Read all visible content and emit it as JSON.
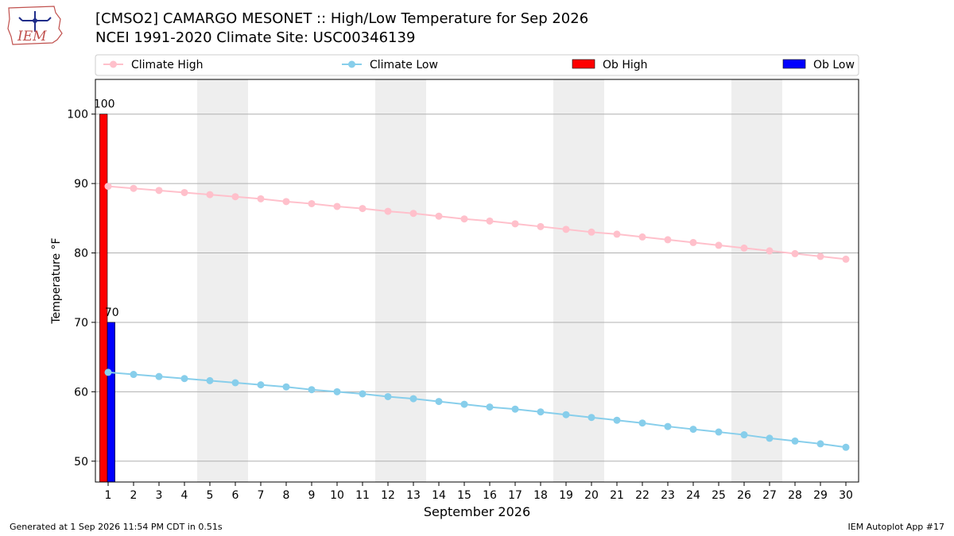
{
  "header": {
    "title_line1": "[CMSO2] CAMARGO MESONET :: High/Low Temperature for Sep 2026",
    "title_line2": "NCEI 1991-2020 Climate Site: USC00346139",
    "logo_text": "IEM"
  },
  "footer": {
    "generated": "Generated at 1 Sep 2026 11:54 PM CDT in 0.51s",
    "app": "IEM Autoplot App #17"
  },
  "colors": {
    "climate_high": "#ffc0cb",
    "climate_low": "#87ceeb",
    "ob_high": "#ff0000",
    "ob_low": "#0000ff",
    "weekend_band": "#eeeeee",
    "grid": "#b0b0b0"
  },
  "chart_data": {
    "type": "bar",
    "xlabel": "September 2026",
    "ylabel": "Temperature °F",
    "xlim": [
      0.5,
      30.5
    ],
    "ylim": [
      47,
      105
    ],
    "x_ticks": [
      1,
      2,
      3,
      4,
      5,
      6,
      7,
      8,
      9,
      10,
      11,
      12,
      13,
      14,
      15,
      16,
      17,
      18,
      19,
      20,
      21,
      22,
      23,
      24,
      25,
      26,
      27,
      28,
      29,
      30
    ],
    "y_ticks": [
      50,
      60,
      70,
      80,
      90,
      100
    ],
    "grid": "horizontal",
    "weekend_bands": [
      [
        4.5,
        6.5
      ],
      [
        11.5,
        13.5
      ],
      [
        18.5,
        20.5
      ],
      [
        25.5,
        27.5
      ]
    ],
    "legend_position": "top",
    "legend": [
      {
        "label": "Climate High",
        "kind": "line",
        "color_key": "climate_high"
      },
      {
        "label": "Climate Low",
        "kind": "line",
        "color_key": "climate_low"
      },
      {
        "label": "Ob High",
        "kind": "box",
        "color_key": "ob_high"
      },
      {
        "label": "Ob Low",
        "kind": "box",
        "color_key": "ob_low"
      }
    ],
    "series": [
      {
        "name": "Climate High",
        "type": "line",
        "x": [
          1,
          2,
          3,
          4,
          5,
          6,
          7,
          8,
          9,
          10,
          11,
          12,
          13,
          14,
          15,
          16,
          17,
          18,
          19,
          20,
          21,
          22,
          23,
          24,
          25,
          26,
          27,
          28,
          29,
          30
        ],
        "values": [
          89.6,
          89.3,
          89.0,
          88.7,
          88.4,
          88.1,
          87.8,
          87.4,
          87.1,
          86.7,
          86.4,
          86.0,
          85.7,
          85.3,
          84.9,
          84.6,
          84.2,
          83.8,
          83.4,
          83.0,
          82.7,
          82.3,
          81.9,
          81.5,
          81.1,
          80.7,
          80.3,
          79.9,
          79.5,
          79.1
        ]
      },
      {
        "name": "Climate Low",
        "type": "line",
        "x": [
          1,
          2,
          3,
          4,
          5,
          6,
          7,
          8,
          9,
          10,
          11,
          12,
          13,
          14,
          15,
          16,
          17,
          18,
          19,
          20,
          21,
          22,
          23,
          24,
          25,
          26,
          27,
          28,
          29,
          30
        ],
        "values": [
          62.8,
          62.5,
          62.2,
          61.9,
          61.6,
          61.3,
          61.0,
          60.7,
          60.3,
          60.0,
          59.7,
          59.3,
          59.0,
          58.6,
          58.2,
          57.8,
          57.5,
          57.1,
          56.7,
          56.3,
          55.9,
          55.5,
          55.0,
          54.6,
          54.2,
          53.8,
          53.3,
          52.9,
          52.5,
          52.0
        ]
      },
      {
        "name": "Ob High",
        "type": "bar",
        "x": [
          1
        ],
        "values": [
          100
        ],
        "labels": [
          "100"
        ]
      },
      {
        "name": "Ob Low",
        "type": "bar",
        "x": [
          1
        ],
        "values": [
          70
        ],
        "labels": [
          "70"
        ]
      }
    ]
  }
}
